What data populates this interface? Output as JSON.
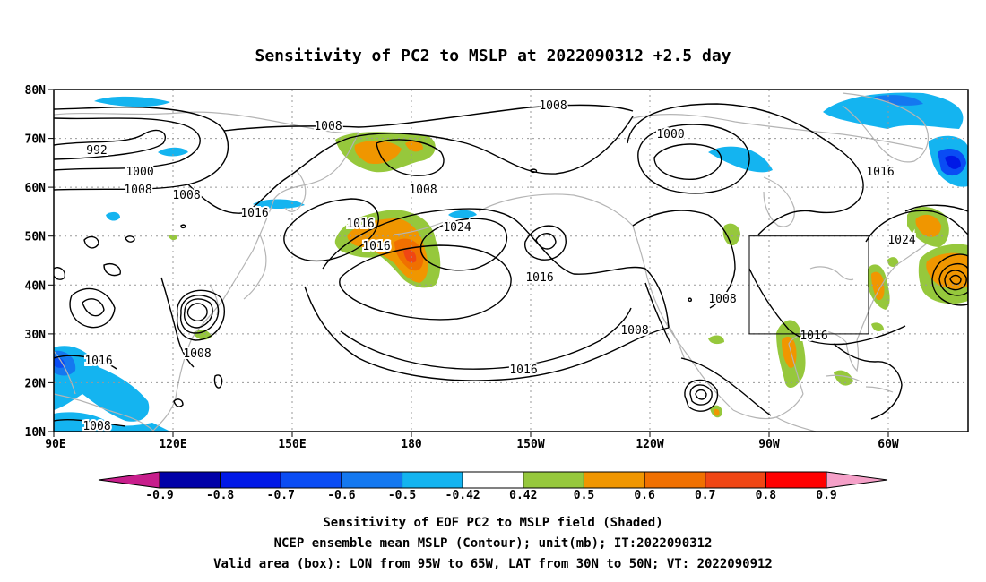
{
  "title": "Sensitivity of PC2 to MSLP at 2022090312 +2.5 day",
  "map": {
    "lat_ticks": [
      "80N",
      "70N",
      "60N",
      "50N",
      "40N",
      "30N",
      "20N",
      "10N"
    ],
    "lon_ticks": [
      "90E",
      "120E",
      "150E",
      "180",
      "150W",
      "120W",
      "90W",
      "60W"
    ],
    "contour_labels": [
      "992",
      "1000",
      "1008",
      "1008",
      "1008",
      "1016",
      "1008",
      "1016",
      "1016",
      "1024",
      "1008",
      "1016",
      "1000",
      "1016",
      "1024",
      "1008",
      "1008",
      "1016",
      "1016",
      "1008",
      "1016",
      "1008"
    ],
    "valid_box": {
      "lon_from": "95W",
      "lon_to": "65W",
      "lat_from": "30N",
      "lat_to": "50N"
    }
  },
  "colorbar": {
    "labels": [
      "-0.9",
      "-0.8",
      "-0.7",
      "-0.6",
      "-0.5",
      "-0.42",
      "0.42",
      "0.5",
      "0.6",
      "0.7",
      "0.8",
      "0.9"
    ],
    "colors": [
      "#0000a8",
      "#0018e6",
      "#0a4cf4",
      "#1478f0",
      "#14b4f0",
      "#ffffff",
      "#96c83c",
      "#f09600",
      "#f07000",
      "#f04614",
      "#ff0000"
    ],
    "low_color": "#c81e8c",
    "high_color": "#f5a0c8"
  },
  "captions": [
    "Sensitivity of EOF PC2 to MSLP field (Shaded)",
    "NCEP ensemble mean MSLP (Contour); unit(mb); IT:2022090312",
    "Valid area (box): LON from 95W to 65W, LAT from 30N to 50N; VT: 2022090912"
  ]
}
